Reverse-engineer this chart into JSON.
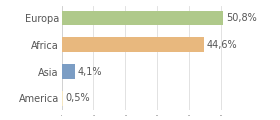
{
  "categories": [
    "America",
    "Asia",
    "Africa",
    "Europa"
  ],
  "values": [
    0.5,
    4.1,
    44.6,
    50.8
  ],
  "labels": [
    "0,5%",
    "4,1%",
    "44,6%",
    "50,8%"
  ],
  "bar_colors": [
    "#f5e6c0",
    "#7b9dc4",
    "#e8b87e",
    "#afc98a"
  ],
  "background_color": "#ffffff",
  "xlim": [
    0,
    58
  ],
  "bar_height": 0.55,
  "label_fontsize": 7,
  "tick_fontsize": 7,
  "gridlines": [
    0,
    10,
    20,
    30,
    40,
    50
  ]
}
